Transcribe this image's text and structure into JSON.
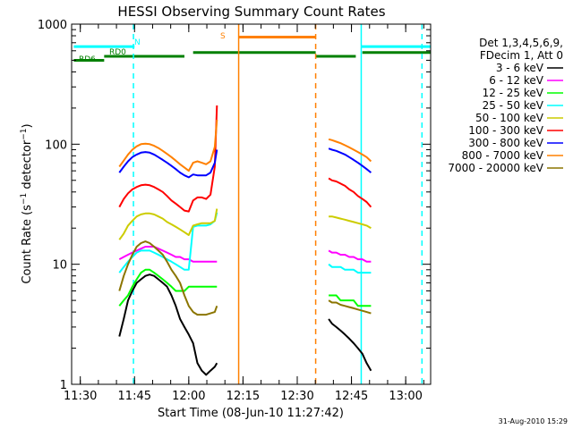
{
  "chart_data": {
    "type": "line",
    "title": "HESSI Observing Summary Count Rates",
    "xlabel": "Start Time (08-Jun-10 11:27:42)",
    "ylabel": "Count Rate (s⁻¹ detector⁻¹)",
    "ylabel_main": "Count Rate (s",
    "ylabel_mid": " detector",
    "ylabel_close": ")",
    "ylabel_sup": "−1",
    "yscale": "log",
    "ylim": [
      1,
      1000
    ],
    "xlim": [
      11.46,
      13.115
    ],
    "yticks": [
      {
        "value": 1,
        "label": "1"
      },
      {
        "value": 10,
        "label": "10"
      },
      {
        "value": 100,
        "label": "100"
      },
      {
        "value": 1000,
        "label": "1000"
      }
    ],
    "xticks": [
      {
        "value": 11.5,
        "label": "11:30"
      },
      {
        "value": 11.75,
        "label": "11:45"
      },
      {
        "value": 12.0,
        "label": "12:00"
      },
      {
        "value": 12.25,
        "label": "12:15"
      },
      {
        "value": 12.5,
        "label": "12:30"
      },
      {
        "value": 12.75,
        "label": "12:45"
      },
      {
        "value": 13.0,
        "label": "13:00"
      }
    ],
    "legend": {
      "position": "right",
      "header": [
        "Det 1,3,4,5,6,9,",
        "FDecim 1, Att 0"
      ]
    },
    "series": [
      {
        "name": "3 - 6 keV",
        "color": "#000000",
        "x": [
          11.68,
          11.7,
          11.72,
          11.74,
          11.76,
          11.78,
          11.8,
          11.82,
          11.84,
          11.86,
          11.88,
          11.9,
          11.92,
          11.94,
          11.96,
          11.98,
          12.0,
          12.02,
          12.04,
          12.06,
          12.08,
          12.1,
          12.12,
          12.13,
          12.645,
          12.66,
          12.68,
          12.7,
          12.72,
          12.74,
          12.76,
          12.78,
          12.8,
          12.82,
          12.84
        ],
        "y": [
          2.5,
          3.5,
          5.0,
          6.0,
          7.0,
          7.5,
          8.0,
          8.2,
          8.0,
          7.5,
          7.0,
          6.5,
          5.5,
          4.5,
          3.5,
          3.0,
          2.6,
          2.2,
          1.5,
          1.3,
          1.2,
          1.3,
          1.4,
          1.5,
          3.5,
          3.2,
          3.0,
          2.8,
          2.6,
          2.4,
          2.2,
          2.0,
          1.8,
          1.5,
          1.3
        ]
      },
      {
        "name": "6 - 12 keV",
        "color": "#ff00ff",
        "x": [
          11.68,
          11.7,
          11.72,
          11.74,
          11.76,
          11.78,
          11.8,
          11.82,
          11.84,
          11.86,
          11.88,
          11.9,
          11.92,
          11.94,
          11.96,
          11.98,
          12.0,
          12.02,
          12.04,
          12.06,
          12.08,
          12.1,
          12.12,
          12.13,
          12.645,
          12.66,
          12.68,
          12.7,
          12.72,
          12.74,
          12.76,
          12.78,
          12.8,
          12.82,
          12.84
        ],
        "y": [
          11.0,
          11.5,
          12.0,
          12.5,
          13.0,
          13.5,
          14.0,
          14.0,
          14.0,
          13.5,
          13.0,
          12.5,
          12.0,
          11.5,
          11.5,
          11.0,
          11.0,
          10.5,
          10.5,
          10.5,
          10.5,
          10.5,
          10.5,
          10.5,
          13.0,
          12.5,
          12.5,
          12.0,
          12.0,
          11.5,
          11.5,
          11.0,
          11.0,
          10.5,
          10.5
        ]
      },
      {
        "name": "12 - 25 keV",
        "color": "#00ff00",
        "x": [
          11.68,
          11.7,
          11.72,
          11.74,
          11.76,
          11.78,
          11.8,
          11.82,
          11.84,
          11.86,
          11.88,
          11.9,
          11.92,
          11.94,
          11.96,
          11.98,
          12.0,
          12.02,
          12.04,
          12.06,
          12.08,
          12.1,
          12.12,
          12.13,
          12.645,
          12.66,
          12.68,
          12.7,
          12.72,
          12.74,
          12.76,
          12.78,
          12.8,
          12.82,
          12.84
        ],
        "y": [
          4.5,
          5.0,
          5.5,
          6.5,
          7.5,
          8.5,
          9.0,
          9.0,
          8.5,
          8.0,
          7.5,
          7.0,
          6.5,
          6.0,
          6.0,
          6.0,
          6.5,
          6.5,
          6.5,
          6.5,
          6.5,
          6.5,
          6.5,
          6.5,
          5.5,
          5.5,
          5.5,
          5.0,
          5.0,
          5.0,
          5.0,
          4.5,
          4.5,
          4.5,
          4.5
        ]
      },
      {
        "name": "25 - 50 keV",
        "color": "#00ffff",
        "x": [
          11.68,
          11.7,
          11.72,
          11.74,
          11.76,
          11.78,
          11.8,
          11.82,
          11.84,
          11.86,
          11.88,
          11.9,
          11.92,
          11.94,
          11.96,
          11.98,
          12.0,
          12.02,
          12.04,
          12.06,
          12.08,
          12.1,
          12.12,
          12.13,
          12.645,
          12.66,
          12.68,
          12.7,
          12.72,
          12.74,
          12.76,
          12.78,
          12.8,
          12.82,
          12.84
        ],
        "y": [
          8.5,
          9.5,
          10.5,
          11.5,
          12.5,
          13.0,
          13.0,
          13.0,
          12.5,
          12.0,
          11.5,
          11.0,
          10.5,
          10.0,
          9.5,
          9.0,
          9.0,
          20.5,
          21.0,
          21.0,
          21.0,
          21.5,
          23.0,
          27.0,
          10.0,
          9.5,
          9.5,
          9.5,
          9.0,
          9.0,
          9.0,
          8.5,
          8.5,
          8.5,
          8.5
        ]
      },
      {
        "name": "50 - 100 keV",
        "color": "#cccc00",
        "x": [
          11.68,
          11.7,
          11.72,
          11.74,
          11.76,
          11.78,
          11.8,
          11.82,
          11.84,
          11.86,
          11.88,
          11.9,
          11.92,
          11.94,
          11.96,
          11.98,
          12.0,
          12.02,
          12.04,
          12.06,
          12.08,
          12.1,
          12.12,
          12.13,
          12.645,
          12.66,
          12.68,
          12.7,
          12.72,
          12.74,
          12.76,
          12.78,
          12.8,
          12.82,
          12.84
        ],
        "y": [
          16.0,
          18.0,
          21.0,
          23.0,
          25.0,
          26.0,
          26.5,
          26.5,
          26.0,
          25.0,
          24.0,
          22.5,
          21.5,
          20.5,
          19.5,
          18.5,
          17.5,
          21.0,
          21.5,
          22.0,
          22.0,
          22.0,
          23.0,
          29.0,
          25.0,
          25.0,
          24.5,
          24.0,
          23.5,
          23.0,
          22.5,
          22.0,
          21.5,
          21.0,
          20.0
        ]
      },
      {
        "name": "100 - 300 keV",
        "color": "#ff0000",
        "x": [
          11.68,
          11.7,
          11.72,
          11.74,
          11.76,
          11.78,
          11.8,
          11.82,
          11.84,
          11.86,
          11.88,
          11.9,
          11.92,
          11.94,
          11.96,
          11.98,
          12.0,
          12.02,
          12.04,
          12.06,
          12.08,
          12.1,
          12.12,
          12.13,
          12.645,
          12.66,
          12.68,
          12.7,
          12.72,
          12.74,
          12.76,
          12.78,
          12.8,
          12.82,
          12.84
        ],
        "y": [
          30.0,
          35.0,
          39.0,
          42.0,
          44.0,
          45.5,
          46.0,
          45.5,
          44.0,
          42.0,
          40.0,
          37.0,
          34.0,
          32.0,
          30.0,
          28.0,
          27.5,
          34.0,
          36.0,
          36.0,
          35.0,
          38.0,
          65.0,
          210.0,
          52.0,
          50.0,
          49.0,
          47.0,
          45.0,
          42.0,
          40.0,
          37.0,
          35.0,
          33.0,
          30.0
        ]
      },
      {
        "name": "300 - 800 keV",
        "color": "#0000ff",
        "x": [
          11.68,
          11.7,
          11.72,
          11.74,
          11.76,
          11.78,
          11.8,
          11.82,
          11.84,
          11.86,
          11.88,
          11.9,
          11.92,
          11.94,
          11.96,
          11.98,
          12.0,
          12.02,
          12.04,
          12.06,
          12.08,
          12.1,
          12.12,
          12.13,
          12.645,
          12.66,
          12.68,
          12.7,
          12.72,
          12.74,
          12.76,
          12.78,
          12.8,
          12.82,
          12.84
        ],
        "y": [
          58.0,
          65.0,
          72.0,
          78.0,
          82.0,
          85.0,
          86.0,
          85.0,
          82.0,
          78.0,
          74.0,
          70.0,
          66.0,
          62.0,
          58.0,
          55.0,
          53.0,
          56.0,
          55.0,
          55.0,
          55.0,
          58.0,
          70.0,
          90.0,
          92.0,
          90.0,
          88.0,
          85.0,
          82.0,
          78.0,
          74.0,
          70.0,
          66.0,
          62.0,
          58.0
        ]
      },
      {
        "name": "800 - 7000 keV",
        "color": "#ff8000",
        "x": [
          11.68,
          11.7,
          11.72,
          11.74,
          11.76,
          11.78,
          11.8,
          11.82,
          11.84,
          11.86,
          11.88,
          11.9,
          11.92,
          11.94,
          11.96,
          11.98,
          12.0,
          12.02,
          12.04,
          12.06,
          12.08,
          12.1,
          12.12,
          12.13,
          12.645,
          12.66,
          12.68,
          12.7,
          12.72,
          12.74,
          12.76,
          12.78,
          12.8,
          12.82,
          12.84
        ],
        "y": [
          65.0,
          73.0,
          82.0,
          90.0,
          96.0,
          100.0,
          101.0,
          100.0,
          97.0,
          93.0,
          88.0,
          83.0,
          78.0,
          73.0,
          68.0,
          64.0,
          60.0,
          70.0,
          72.0,
          70.0,
          68.0,
          72.0,
          95.0,
          160.0,
          110.0,
          108.0,
          105.0,
          102.0,
          98.0,
          94.0,
          90.0,
          86.0,
          82.0,
          78.0,
          72.0
        ]
      },
      {
        "name": "7000 - 20000 keV",
        "color": "#8b7500",
        "x": [
          11.68,
          11.7,
          11.72,
          11.74,
          11.76,
          11.78,
          11.8,
          11.82,
          11.84,
          11.86,
          11.88,
          11.9,
          11.92,
          11.94,
          11.96,
          11.98,
          12.0,
          12.02,
          12.04,
          12.06,
          12.08,
          12.1,
          12.12,
          12.13,
          12.645,
          12.66,
          12.68,
          12.7,
          12.72,
          12.74,
          12.76,
          12.78,
          12.8,
          12.82,
          12.84
        ],
        "y": [
          6.0,
          8.0,
          10.0,
          12.0,
          14.0,
          15.0,
          15.5,
          15.0,
          14.0,
          13.0,
          12.0,
          10.5,
          9.0,
          8.0,
          7.0,
          5.5,
          4.5,
          4.0,
          3.8,
          3.8,
          3.8,
          3.9,
          4.0,
          4.5,
          5.0,
          4.8,
          4.8,
          4.6,
          4.5,
          4.4,
          4.3,
          4.2,
          4.1,
          4.0,
          3.9
        ]
      }
    ],
    "states": [
      {
        "label": "RD6",
        "color": "#008000",
        "segments": [
          [
            11.47,
            11.61
          ],
          [
            11.61,
            11.98
          ],
          [
            12.02,
            12.585
          ],
          [
            12.585,
            12.77
          ],
          [
            12.8,
            13.115
          ]
        ],
        "levels": [
          500,
          540,
          580,
          540,
          580
        ]
      },
      {
        "label": "RD0",
        "color": "#008000",
        "segments": [],
        "levels": []
      },
      {
        "label": "N",
        "color": "#00ffff",
        "segments": [
          [
            11.47,
            11.75
          ],
          [
            12.795,
            13.115
          ]
        ],
        "levels": [
          650,
          650
        ]
      },
      {
        "label": "S",
        "color": "#ff8000",
        "segments": [
          [
            12.23,
            12.585
          ]
        ],
        "levels": [
          780
        ]
      }
    ],
    "vlines": [
      {
        "x": 11.745,
        "color": "#00ffff",
        "dash": true
      },
      {
        "x": 12.23,
        "color": "#ff8000",
        "dash": false
      },
      {
        "x": 12.585,
        "color": "#ff8000",
        "dash": true
      },
      {
        "x": 12.795,
        "color": "#00ffff",
        "dash": false
      },
      {
        "x": 13.075,
        "color": "#00ffff",
        "dash": true
      }
    ],
    "timestamp": "31-Aug-2010 15:29"
  }
}
